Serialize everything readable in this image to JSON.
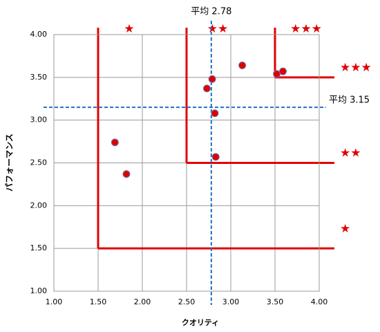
{
  "chart_data": {
    "type": "scatter",
    "x_label": "クオリティ",
    "y_label": "パフォーマンス",
    "x": [
      1.69,
      1.82,
      2.73,
      2.79,
      2.82,
      2.83,
      3.13,
      3.52,
      3.59
    ],
    "values": [
      2.74,
      2.37,
      3.37,
      3.48,
      3.08,
      2.57,
      3.64,
      3.54,
      3.57
    ],
    "color": "#e00000",
    "xlim": [
      1,
      4
    ],
    "ylim": [
      1,
      4
    ],
    "xticks": [
      {
        "value": 1,
        "label": "1.00"
      },
      {
        "value": 1.5,
        "label": "1.50"
      },
      {
        "value": 2,
        "label": "2.00"
      },
      {
        "value": 2.5,
        "label": "2.50"
      },
      {
        "value": 3,
        "label": "3.00"
      },
      {
        "value": 3.5,
        "label": "3.50"
      },
      {
        "value": 4,
        "label": "4.00"
      }
    ],
    "yticks": [
      {
        "value": 1,
        "label": "1.00"
      },
      {
        "value": 1.5,
        "label": "1.50"
      },
      {
        "value": 2,
        "label": "2.00"
      },
      {
        "value": 2.5,
        "label": "2.50"
      },
      {
        "value": 3,
        "label": "3.00"
      },
      {
        "value": 3.5,
        "label": "3.50"
      },
      {
        "value": 4,
        "label": "4.00"
      }
    ],
    "grid": true,
    "mean_x": {
      "value": 2.78,
      "label": "平均 2.78"
    },
    "mean_y": {
      "value": 3.15,
      "label": "平均 3.15"
    },
    "zones": [
      {
        "threshold": 1.5,
        "top_label": "★",
        "right_label": "★"
      },
      {
        "threshold": 2.5,
        "top_label": "★★",
        "right_label": "★★"
      },
      {
        "threshold": 3.5,
        "top_label": "★★★",
        "right_label": "★★★"
      }
    ]
  }
}
